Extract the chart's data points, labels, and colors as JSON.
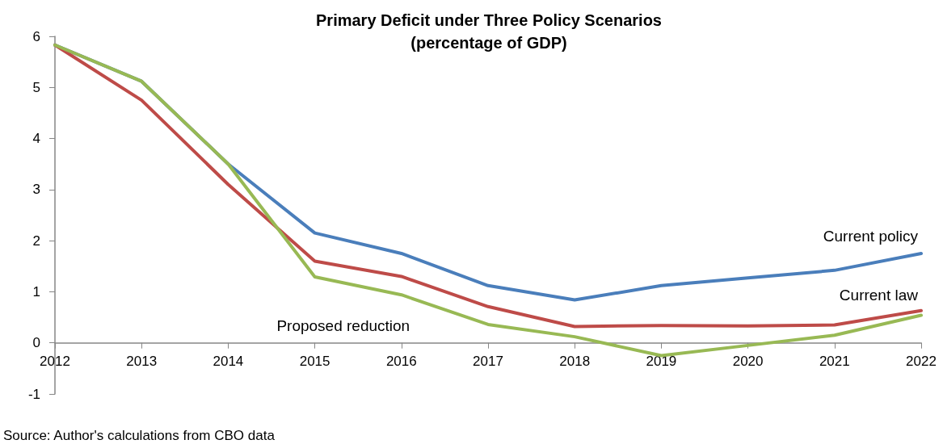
{
  "chart_data": {
    "type": "line",
    "title": "Primary Deficit under Three Policy Scenarios",
    "subtitle": "(percentage of GDP)",
    "categories": [
      "2012",
      "2013",
      "2014",
      "2015",
      "2016",
      "2017",
      "2018",
      "2019",
      "2020",
      "2021",
      "2022"
    ],
    "series": [
      {
        "name": "Current policy",
        "color": "#4a7ebb",
        "values": [
          5.83,
          5.12,
          3.5,
          2.15,
          1.75,
          1.12,
          0.84,
          1.12,
          1.27,
          1.42,
          1.75
        ]
      },
      {
        "name": "Current law",
        "color": "#be4b48",
        "values": [
          5.83,
          4.75,
          3.1,
          1.6,
          1.3,
          0.71,
          0.32,
          0.34,
          0.33,
          0.35,
          0.63
        ]
      },
      {
        "name": "Proposed reduction",
        "color": "#98b954",
        "values": [
          5.83,
          5.12,
          3.5,
          1.29,
          0.94,
          0.36,
          0.12,
          -0.25,
          -0.05,
          0.15,
          0.54
        ]
      }
    ],
    "ylim": [
      -1,
      6
    ],
    "yticks": [
      -1,
      0,
      1,
      2,
      3,
      4,
      5,
      6
    ],
    "grid": false,
    "legend": false,
    "marker": "none",
    "line_style": "solid",
    "annotations": [
      "Source: Author's calculations from CBO data"
    ]
  }
}
